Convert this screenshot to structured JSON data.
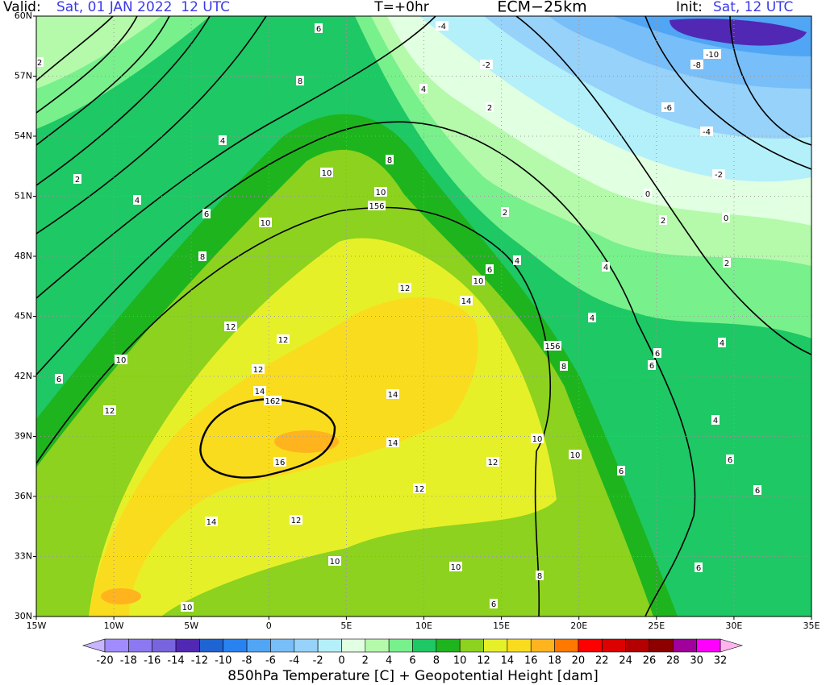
{
  "header": {
    "valid_label": "Valid:",
    "valid_time": "Sat, 01 JAN 2022  12 UTC",
    "forecast_hour": "T=+0hr",
    "model": "ECM−25km",
    "init_label": "Init:",
    "init_time": "Sat, 12 UTC"
  },
  "map": {
    "lat_ticks": [
      {
        "value": 30,
        "label": "30N"
      },
      {
        "value": 33,
        "label": "33N"
      },
      {
        "value": 36,
        "label": "36N"
      },
      {
        "value": 39,
        "label": "39N"
      },
      {
        "value": 42,
        "label": "42N"
      },
      {
        "value": 45,
        "label": "45N"
      },
      {
        "value": 48,
        "label": "48N"
      },
      {
        "value": 51,
        "label": "51N"
      },
      {
        "value": 54,
        "label": "54N"
      },
      {
        "value": 57,
        "label": "57N"
      },
      {
        "value": 60,
        "label": "60N"
      }
    ],
    "lon_ticks": [
      {
        "value": -15,
        "label": "15W"
      },
      {
        "value": -10,
        "label": "10W"
      },
      {
        "value": -5,
        "label": "5W"
      },
      0,
      {
        "value": 5,
        "label": "5E"
      },
      {
        "value": 10,
        "label": "10E"
      },
      {
        "value": 15,
        "label": "15E"
      },
      {
        "value": 20,
        "label": "20E"
      },
      {
        "value": 25,
        "label": "25E"
      },
      {
        "value": 30,
        "label": "30E"
      },
      {
        "value": 35,
        "label": "35E"
      }
    ],
    "grid": true,
    "contour_labels": [
      2,
      6,
      -4,
      -10,
      -8,
      -2,
      8,
      4,
      2,
      -6,
      4,
      -4,
      2,
      10,
      8,
      -2,
      4,
      10,
      156,
      0,
      6,
      2,
      2,
      0,
      10,
      8,
      4,
      2,
      6,
      4,
      10,
      12,
      14,
      4,
      12,
      12,
      156,
      6,
      10,
      4,
      12,
      6,
      8,
      6,
      14,
      162,
      14,
      12,
      4,
      10,
      14,
      16,
      10,
      12,
      6,
      6,
      12,
      6,
      12,
      14,
      10,
      10,
      6,
      8,
      10,
      6
    ]
  },
  "colorbar": {
    "levels": [
      -20,
      -18,
      -16,
      -14,
      -12,
      -10,
      -8,
      -6,
      -4,
      -2,
      0,
      2,
      4,
      6,
      8,
      10,
      12,
      14,
      16,
      18,
      20,
      22,
      24,
      26,
      28,
      30,
      32
    ],
    "colors": [
      "#a08cff",
      "#8c78f0",
      "#7864dc",
      "#5028b4",
      "#1e64d2",
      "#2882f0",
      "#50a5f5",
      "#78bef8",
      "#96d2fa",
      "#b4f0fa",
      "#e1ffe1",
      "#b4faaa",
      "#78f08c",
      "#1ec864",
      "#1eb41e",
      "#8cd21e",
      "#e6f028",
      "#fadc1e",
      "#ffb41e",
      "#ff7800",
      "#ff0000",
      "#dc0000",
      "#b40000",
      "#8c0000",
      "#a0009b",
      "#ff00ff"
    ],
    "under_color": "#c8b4ff",
    "over_color": "#ffb4f0"
  },
  "footer": "850hPa Temperature [C] + Geopotential Height [dam]"
}
